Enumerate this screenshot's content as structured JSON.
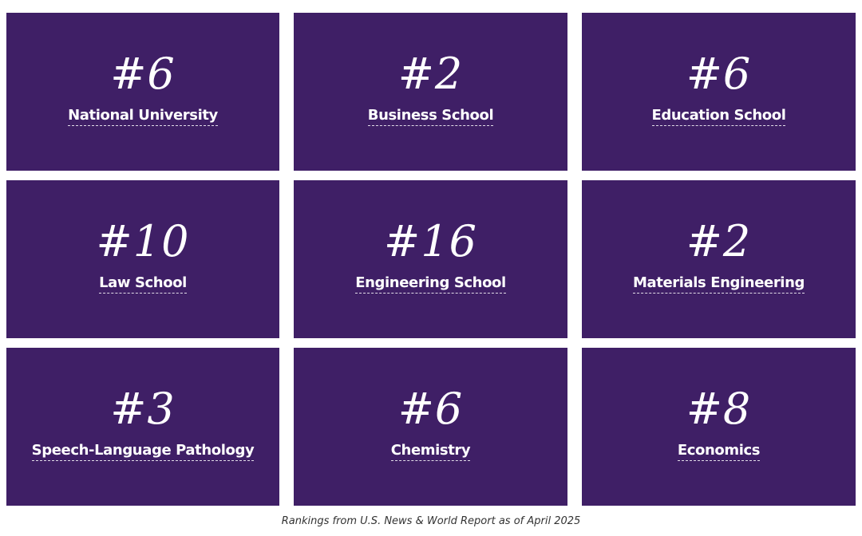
{
  "tiles": [
    {
      "rank": "#6",
      "label": "National University"
    },
    {
      "rank": "#2",
      "label": "Business School"
    },
    {
      "rank": "#6",
      "label": "Education School"
    },
    {
      "rank": "#10",
      "label": "Law School"
    },
    {
      "rank": "#16",
      "label": "Engineering School"
    },
    {
      "rank": "#2",
      "label": "Materials Engineering"
    },
    {
      "rank": "#3",
      "label": "Speech-Language Pathology"
    },
    {
      "rank": "#6",
      "label": "Chemistry"
    },
    {
      "rank": "#8",
      "label": "Economics"
    }
  ],
  "caption": "Rankings from U.S. News & World Report as of April 2025",
  "colors": {
    "tile_background": "#3f1f66",
    "tile_text": "#ffffff"
  }
}
